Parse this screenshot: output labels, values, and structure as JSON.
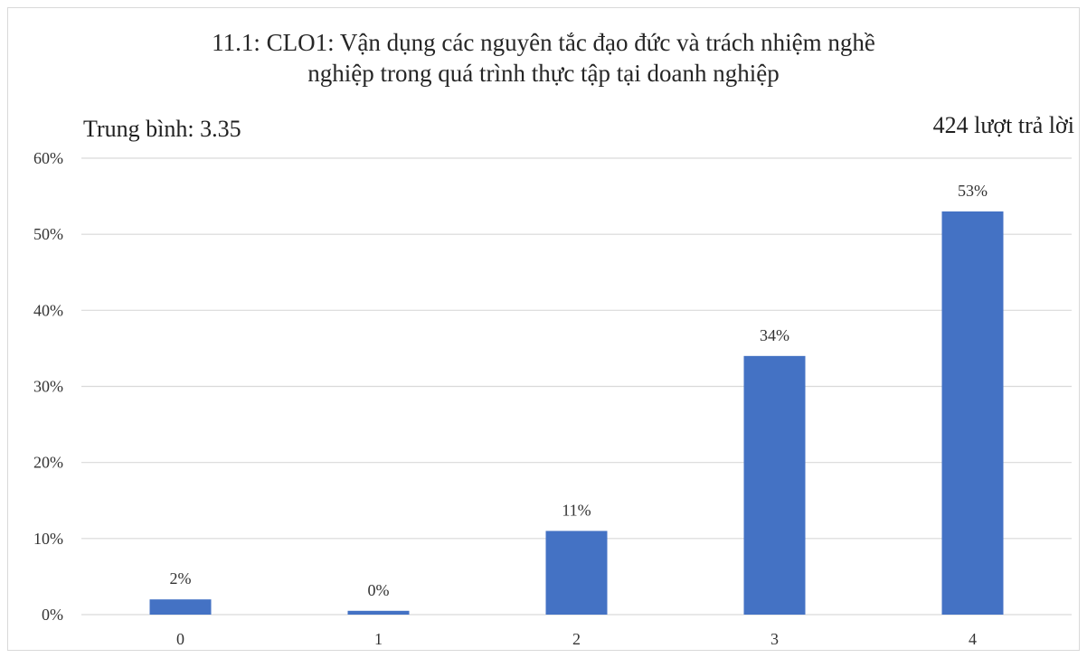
{
  "chart_data": {
    "type": "bar",
    "title_line1": "11.1: CLO1: Vận dụng các nguyên tắc đạo đức và trách nhiệm nghề",
    "title_line2": "nghiệp trong quá trình thực tập tại doanh nghiệp",
    "average_label": "Trung bình: 3.35",
    "responses_label": "424 lượt trả lời",
    "categories": [
      "0",
      "1",
      "2",
      "3",
      "4"
    ],
    "values": [
      2,
      0.5,
      11,
      34,
      53
    ],
    "data_labels": [
      "2%",
      "0%",
      "11%",
      "34%",
      "53%"
    ],
    "ylim": [
      0,
      60
    ],
    "yticks": [
      0,
      10,
      20,
      30,
      40,
      50,
      60
    ],
    "ytick_labels": [
      "0%",
      "10%",
      "20%",
      "30%",
      "40%",
      "50%",
      "60%"
    ],
    "grid": true,
    "bar_color": "#4472C4",
    "grid_color": "#D9D9D9"
  }
}
